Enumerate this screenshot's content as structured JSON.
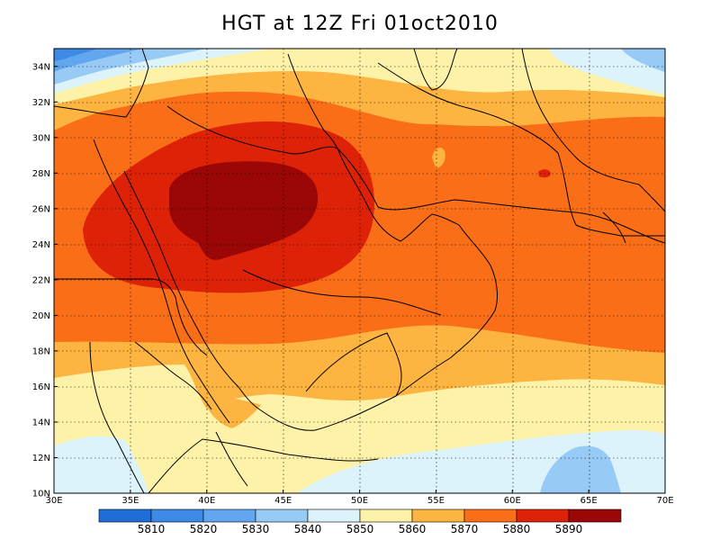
{
  "title": "HGT at 12Z Fri 01oct2010",
  "map": {
    "lon_labels": [
      "30E",
      "35E",
      "40E",
      "45E",
      "50E",
      "55E",
      "60E",
      "65E",
      "70E"
    ],
    "lat_labels": [
      "10N",
      "12N",
      "14N",
      "16N",
      "18N",
      "20N",
      "22N",
      "24N",
      "26N",
      "28N",
      "30N",
      "32N",
      "34N"
    ],
    "lon_range": [
      30,
      70
    ],
    "lat_range": [
      10,
      35
    ],
    "grid": "dotted",
    "lines": "coastlines and country borders"
  },
  "colorbar": {
    "labels": [
      "5810",
      "5820",
      "5830",
      "5840",
      "5850",
      "5860",
      "5870",
      "5880",
      "5890"
    ],
    "colors": [
      "#1e6ed8",
      "#3d8ae6",
      "#62a6f0",
      "#97cbf6",
      "#dcf3fb",
      "#fdf2a8",
      "#fdb440",
      "#fb6e18",
      "#dd2208",
      "#9b0606"
    ]
  },
  "chart_data": {
    "type": "heatmap",
    "title": "HGT at 12Z Fri 01oct2010",
    "variable": "HGT",
    "levels": [
      5810,
      5820,
      5830,
      5840,
      5850,
      5860,
      5870,
      5880,
      5890
    ],
    "xlim": [
      30,
      70
    ],
    "ylim": [
      10,
      35
    ],
    "x_ticks": [
      "30E",
      "35E",
      "40E",
      "45E",
      "50E",
      "55E",
      "60E",
      "65E",
      "70E"
    ],
    "y_ticks": [
      "10N",
      "12N",
      "14N",
      "16N",
      "18N",
      "20N",
      "22N",
      "24N",
      "26N",
      "28N",
      "30N",
      "32N",
      "34N"
    ],
    "maximum_region": "above 5890 centred near 44E, 26.5N",
    "minimum_regions": [
      "below 5840 at northwest corner near 30-33E, 34N",
      "5840-5850 near 63-66E, 11-13N"
    ]
  }
}
